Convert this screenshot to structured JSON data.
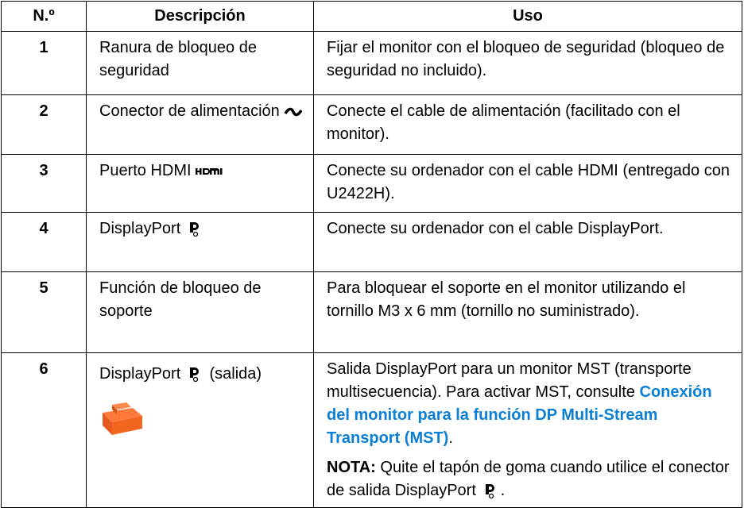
{
  "table": {
    "header": [
      "N.º",
      "Descripción",
      "Uso"
    ],
    "rows": [
      [
        "1",
        "Ranura de bloqueo de seguridad",
        "Fijar el monitor con el bloqueo de seguridad (bloqueo de seguridad no incluido)."
      ],
      [
        "2",
        "Conector de alimentación",
        "Conecte el cable de alimentación (facilitado con el monitor)."
      ],
      [
        "3",
        "Puerto HDMI",
        "Conecte su ordenador con el cable HDMI (entregado con U2422H)."
      ],
      [
        "4",
        "DisplayPort",
        "Conecte su ordenador con el cable DisplayPort."
      ],
      [
        "5",
        "Función de bloqueo de soporte",
        "Para bloquear el soporte en el monitor utilizando el tornillo M3 x 6 mm (tornillo no suministrado)."
      ],
      {
        "number": "6",
        "description": "DisplayPort",
        "description_suffix": "(salida)",
        "usage": "Salida DisplayPort para un monitor MST (transporte multisecuencia). Para activar MST, consulte",
        "link": "Conexión del monitor para la función DP Multi-Stream Transport (MST)",
        "link_end": ".",
        "note_label": "NOTA:",
        "note": "Quite el tapón de goma cuando utilice el conector de salida DisplayPort",
        "note_end": "."
      }
    ]
  }
}
